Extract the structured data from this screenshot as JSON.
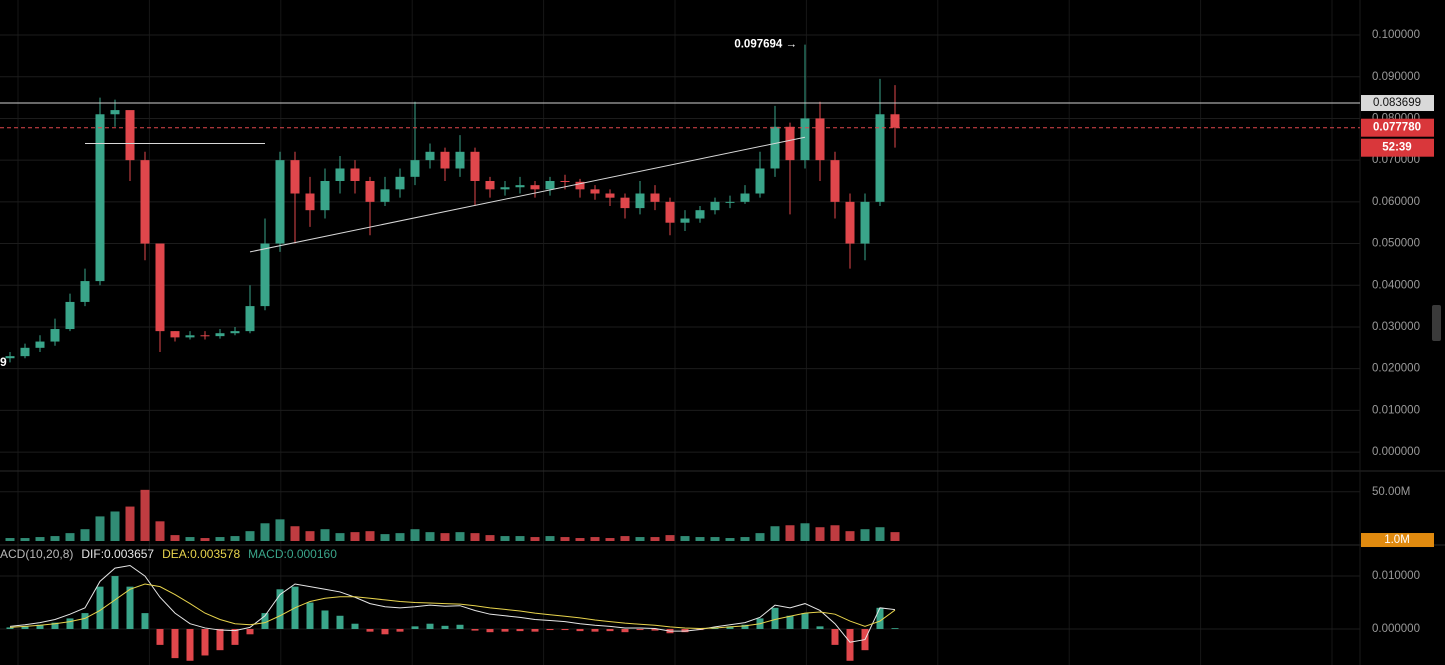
{
  "chart_data": {
    "type": "candlestick",
    "left_label": "9",
    "colors": {
      "up": "#3aa58a",
      "down": "#e0474c"
    },
    "ylim": [
      -0.0043,
      0.1084
    ],
    "yticks": [
      {
        "value": 0.1,
        "label": "0.100000"
      },
      {
        "value": 0.09,
        "label": "0.090000"
      },
      {
        "value": 0.08,
        "label": "0.080000"
      },
      {
        "value": 0.07,
        "label": "0.070000"
      },
      {
        "value": 0.06,
        "label": "0.060000"
      },
      {
        "value": 0.05,
        "label": "0.050000"
      },
      {
        "value": 0.04,
        "label": "0.040000"
      },
      {
        "value": 0.03,
        "label": "0.030000"
      },
      {
        "value": 0.02,
        "label": "0.020000"
      },
      {
        "value": 0.01,
        "label": "0.010000"
      },
      {
        "value": 0,
        "label": "0.000000"
      }
    ],
    "ohlc": {
      "open": [
        0.0225,
        0.023,
        0.025,
        0.0265,
        0.0295,
        0.036,
        0.041,
        0.081,
        0.082,
        0.07,
        0.05,
        0.029,
        0.0275,
        0.028,
        0.0278,
        0.0285,
        0.029,
        0.035,
        0.05,
        0.07,
        0.062,
        0.058,
        0.065,
        0.068,
        0.065,
        0.06,
        0.063,
        0.066,
        0.07,
        0.072,
        0.068,
        0.072,
        0.065,
        0.063,
        0.0635,
        0.064,
        0.063,
        0.065,
        0.0648,
        0.063,
        0.062,
        0.061,
        0.0585,
        0.062,
        0.06,
        0.055,
        0.056,
        0.058,
        0.06,
        0.06,
        0.062,
        0.068,
        0.078,
        0.07,
        0.08,
        0.07,
        0.06,
        0.05,
        0.06,
        0.081
      ],
      "high": [
        0.024,
        0.026,
        0.028,
        0.032,
        0.038,
        0.044,
        0.085,
        0.0845,
        0.074,
        0.072,
        0.031,
        0.029,
        0.029,
        0.029,
        0.0295,
        0.03,
        0.04,
        0.056,
        0.072,
        0.072,
        0.066,
        0.068,
        0.071,
        0.07,
        0.066,
        0.066,
        0.068,
        0.084,
        0.074,
        0.073,
        0.076,
        0.073,
        0.066,
        0.065,
        0.066,
        0.065,
        0.066,
        0.0665,
        0.0655,
        0.064,
        0.063,
        0.062,
        0.065,
        0.064,
        0.061,
        0.058,
        0.059,
        0.061,
        0.0615,
        0.064,
        0.072,
        0.083,
        0.079,
        0.097694,
        0.084,
        0.072,
        0.062,
        0.062,
        0.0895,
        0.088
      ],
      "low": [
        0.0215,
        0.0225,
        0.024,
        0.0255,
        0.029,
        0.035,
        0.04,
        0.078,
        0.065,
        0.046,
        0.024,
        0.0265,
        0.027,
        0.027,
        0.0272,
        0.028,
        0.0285,
        0.034,
        0.048,
        0.05,
        0.054,
        0.056,
        0.062,
        0.062,
        0.052,
        0.059,
        0.061,
        0.064,
        0.068,
        0.065,
        0.066,
        0.059,
        0.061,
        0.0615,
        0.062,
        0.061,
        0.0615,
        0.063,
        0.061,
        0.0605,
        0.059,
        0.056,
        0.057,
        0.058,
        0.052,
        0.053,
        0.055,
        0.057,
        0.0585,
        0.0595,
        0.061,
        0.066,
        0.057,
        0.068,
        0.065,
        0.056,
        0.044,
        0.046,
        0.059,
        0.073
      ],
      "close": [
        0.023,
        0.025,
        0.0265,
        0.0295,
        0.036,
        0.041,
        0.081,
        0.082,
        0.07,
        0.05,
        0.029,
        0.0275,
        0.028,
        0.0278,
        0.0285,
        0.029,
        0.035,
        0.05,
        0.07,
        0.062,
        0.058,
        0.065,
        0.068,
        0.065,
        0.06,
        0.063,
        0.066,
        0.07,
        0.072,
        0.068,
        0.072,
        0.065,
        0.063,
        0.0635,
        0.064,
        0.063,
        0.065,
        0.0648,
        0.063,
        0.062,
        0.061,
        0.0585,
        0.062,
        0.06,
        0.055,
        0.056,
        0.058,
        0.06,
        0.06,
        0.062,
        0.068,
        0.078,
        0.07,
        0.08,
        0.07,
        0.06,
        0.05,
        0.06,
        0.081,
        0.07778
      ]
    },
    "max_label": {
      "index": 53,
      "text": "0.097694 →"
    },
    "trend_lines": [
      {
        "x": [
          5,
          17
        ],
        "y": [
          0.074,
          0.074
        ]
      },
      {
        "x": [
          16,
          53
        ],
        "y": [
          0.048,
          0.0755
        ]
      }
    ],
    "price_line": {
      "value": 0.083699,
      "label": "0.083699"
    },
    "last_price": {
      "value": 0.07778,
      "label": "0.077780",
      "countdown": "52:39"
    },
    "volume": {
      "ylim": [
        0,
        62000000
      ],
      "yticks": [
        {
          "value": 50000000,
          "label": "50.00M"
        }
      ],
      "values": [
        3000000,
        3000000,
        4000000,
        5000000,
        8000000,
        12000000,
        25000000,
        30000000,
        35000000,
        52000000,
        20000000,
        6000000,
        4000000,
        3000000,
        4000000,
        5000000,
        10000000,
        18000000,
        22000000,
        15000000,
        10000000,
        12000000,
        8000000,
        9000000,
        10000000,
        7000000,
        8000000,
        12000000,
        9000000,
        8000000,
        9000000,
        8000000,
        6000000,
        5000000,
        5000000,
        4000000,
        5000000,
        4000000,
        3000000,
        4000000,
        3000000,
        5000000,
        4000000,
        4000000,
        6000000,
        5000000,
        4000000,
        4000000,
        3000000,
        4000000,
        8000000,
        15000000,
        16000000,
        18000000,
        14000000,
        16000000,
        10000000,
        12000000,
        14000000,
        9000000
      ],
      "current": {
        "value": 1000000,
        "label": "1.0M"
      }
    },
    "macd": {
      "header": "ACD(10,20,8)",
      "ylim": [
        -0.0068,
        0.0153
      ],
      "yticks": [
        {
          "value": 0.01,
          "label": "0.010000"
        },
        {
          "value": 0,
          "label": "0.000000"
        }
      ],
      "lines": [
        {
          "label": "DIF:0.003657",
          "color": "#e6e6e6",
          "values": [
            0.0005,
            0.0008,
            0.0012,
            0.0018,
            0.0028,
            0.004,
            0.009,
            0.0115,
            0.012,
            0.01,
            0.006,
            0.003,
            0.001,
            0.0002,
            -0.0002,
            -0.0003,
            0.0003,
            0.0025,
            0.0065,
            0.0085,
            0.008,
            0.0075,
            0.007,
            0.006,
            0.0048,
            0.0042,
            0.004,
            0.0042,
            0.0045,
            0.0043,
            0.0044,
            0.0035,
            0.0028,
            0.0025,
            0.0022,
            0.0018,
            0.0016,
            0.0014,
            0.001,
            0.0007,
            0.0005,
            0.0002,
            0.0002,
            0.0001,
            -0.0004,
            -0.0004,
            -0.0001,
            0.0004,
            0.0008,
            0.0012,
            0.0022,
            0.0045,
            0.004,
            0.0048,
            0.0035,
            0.001,
            -0.0025,
            -0.002,
            0.004,
            0.003657
          ]
        },
        {
          "label": "DEA:0.003578",
          "color": "#e8d44d",
          "values": [
            0.0003,
            0.0005,
            0.0007,
            0.001,
            0.0014,
            0.002,
            0.0035,
            0.0055,
            0.0075,
            0.0085,
            0.008,
            0.0065,
            0.0048,
            0.003,
            0.0018,
            0.001,
            0.0008,
            0.0012,
            0.0025,
            0.004,
            0.0052,
            0.0058,
            0.0061,
            0.0061,
            0.0058,
            0.0055,
            0.0052,
            0.005,
            0.0049,
            0.0048,
            0.0047,
            0.0044,
            0.004,
            0.0037,
            0.0034,
            0.003,
            0.0027,
            0.0024,
            0.0021,
            0.0017,
            0.0014,
            0.0011,
            0.0009,
            0.0007,
            0.0004,
            0.0002,
            0.0001,
            0.0002,
            0.0004,
            0.0006,
            0.001,
            0.0018,
            0.0024,
            0.003,
            0.0032,
            0.0028,
            0.0015,
            0.0005,
            0.0015,
            0.003578
          ]
        }
      ],
      "histogram": {
        "label": "MACD:0.000160",
        "color": "#3aa58a",
        "values": [
          0.0003,
          0.0005,
          0.0008,
          0.0012,
          0.002,
          0.003,
          0.008,
          0.01,
          0.008,
          0.003,
          -0.003,
          -0.0055,
          -0.006,
          -0.005,
          -0.004,
          -0.003,
          -0.001,
          0.003,
          0.0075,
          0.008,
          0.005,
          0.0035,
          0.0025,
          0.001,
          -0.0005,
          -0.001,
          -0.0005,
          0.0005,
          0.001,
          0.0006,
          0.0008,
          -0.0003,
          -0.0006,
          -0.0005,
          -0.0004,
          -0.0005,
          -0.0002,
          -0.0002,
          -0.0004,
          -0.0005,
          -0.0004,
          -0.0006,
          -0.0002,
          -0.0003,
          -0.0008,
          -0.0006,
          -0.0002,
          0.0003,
          0.0005,
          0.0008,
          0.002,
          0.004,
          0.0025,
          0.003,
          0.0005,
          -0.003,
          -0.006,
          -0.004,
          0.004,
          0.00016
        ]
      }
    }
  }
}
